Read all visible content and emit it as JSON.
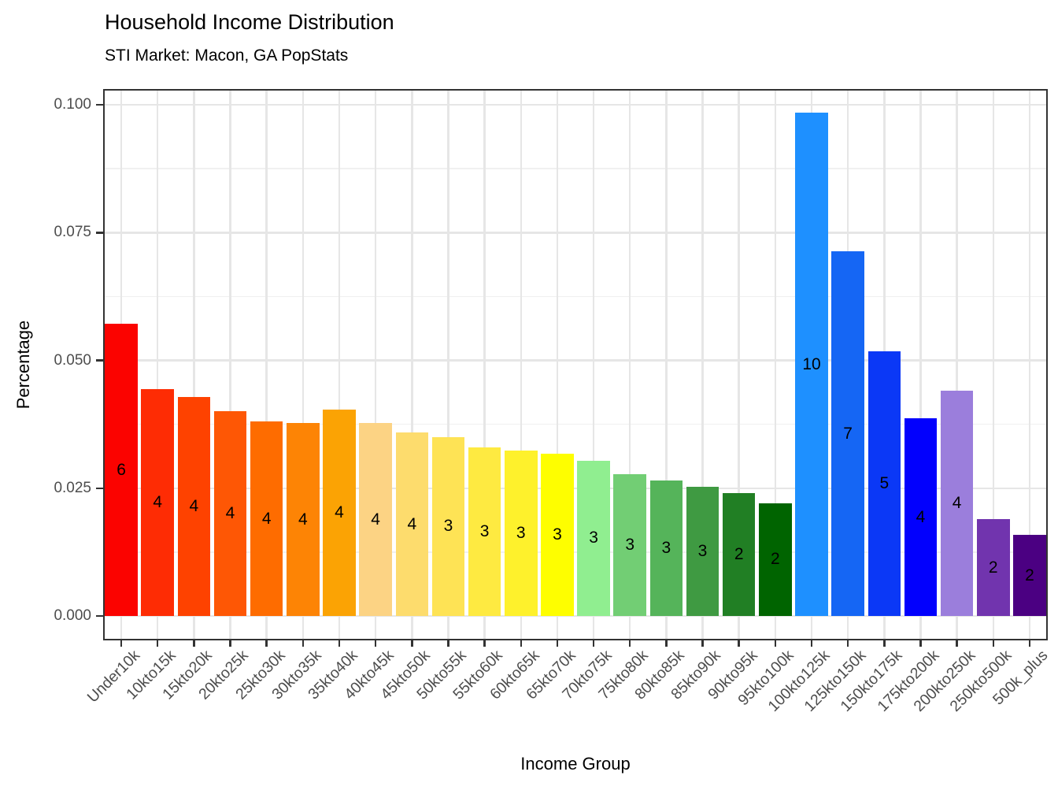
{
  "chart_data": {
    "type": "bar",
    "title": "Household Income Distribution",
    "subtitle": "STI Market: Macon, GA PopStats",
    "xlabel": "Income Group",
    "ylabel": "Percentage",
    "ylim": [
      0,
      0.103
    ],
    "yticks": [
      0,
      0.025,
      0.05,
      0.075,
      0.1
    ],
    "ytick_labels": [
      "0.000",
      "0.025",
      "0.050",
      "0.075",
      "0.100"
    ],
    "grid": "horizontal major+minor and vertical major gridlines, light gray on white",
    "legend": "none",
    "categories": [
      "Under10k",
      "10kto15k",
      "15kto20k",
      "20kto25k",
      "25kto30k",
      "30kto35k",
      "35kto40k",
      "40kto45k",
      "45kto50k",
      "50kto55k",
      "55kto60k",
      "60kto65k",
      "65kto70k",
      "70kto75k",
      "75kto80k",
      "80kto85k",
      "85kto90k",
      "90kto95k",
      "95kto100k",
      "100kto125k",
      "125kto150k",
      "150kto175k",
      "175kto200k",
      "200kto250k",
      "250kto500k",
      "500k_plus"
    ],
    "values": [
      0.0571,
      0.0444,
      0.0428,
      0.0401,
      0.038,
      0.0377,
      0.0404,
      0.0377,
      0.0359,
      0.035,
      0.0329,
      0.0323,
      0.0318,
      0.0304,
      0.0278,
      0.0265,
      0.0253,
      0.024,
      0.0221,
      0.0984,
      0.0713,
      0.0518,
      0.0386,
      0.044,
      0.0189,
      0.0158
    ],
    "bar_labels": [
      "6",
      "4",
      "4",
      "4",
      "4",
      "4",
      "4",
      "4",
      "4",
      "3",
      "3",
      "3",
      "3",
      "3",
      "3",
      "3",
      "3",
      "2",
      "2",
      "10",
      "7",
      "5",
      "4",
      "4",
      "2",
      "2"
    ],
    "bar_colors": [
      "#FB0300",
      "#FE2C04",
      "#FE4200",
      "#FE5705",
      "#FE6C00",
      "#FD8405",
      "#FBA304",
      "#FCD384",
      "#FDDC6D",
      "#FEE355",
      "#FEEA41",
      "#FEF12C",
      "#FEFE00",
      "#90EE90",
      "#72CE74",
      "#55B45A",
      "#3F9A42",
      "#217F24",
      "#006400",
      "#1E90FF",
      "#1566F4",
      "#0B38F6",
      "#0200FD",
      "#9B7EDC",
      "#7134AE",
      "#4B0082"
    ],
    "style": {
      "grid_major_color": "#E6E6E6",
      "grid_minor_color": "#F0F0F0",
      "axis_text_color": "#4D4D4D",
      "tick_color": "#333333",
      "panel_border_color": "#333333",
      "background": "#FFFFFF"
    }
  }
}
